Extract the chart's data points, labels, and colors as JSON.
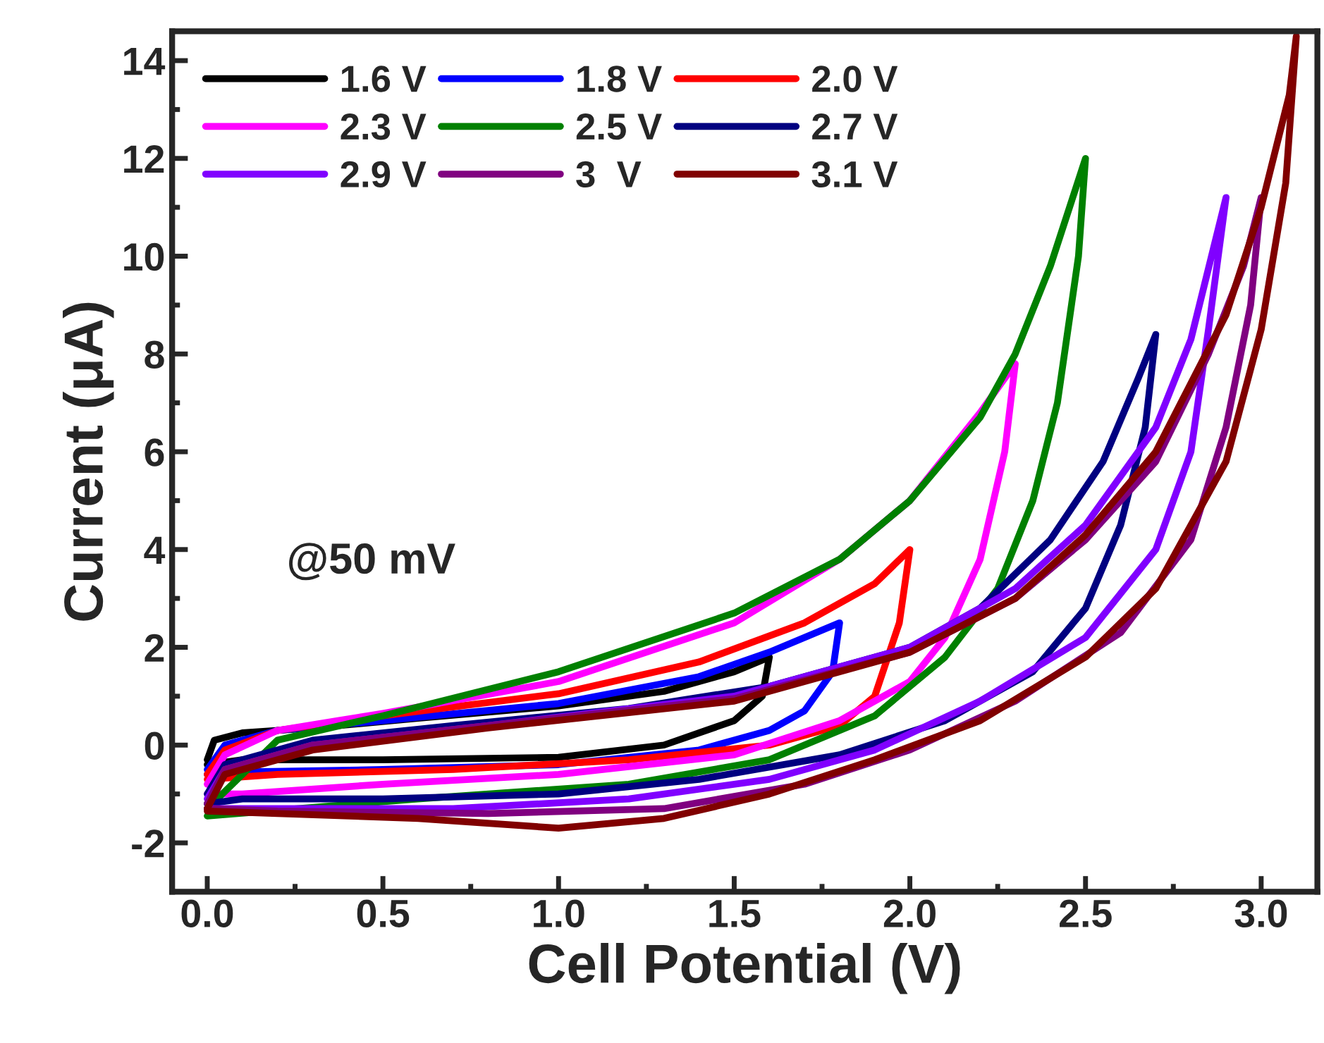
{
  "chart_data": {
    "type": "line",
    "xlabel": "Cell Potential (V)",
    "ylabel": "Current (μA)",
    "annotations": [
      "@50 mV"
    ],
    "xlim": [
      -0.1,
      3.16
    ],
    "ylim": [
      -3,
      14.6
    ],
    "xticks": [
      {
        "value": 0,
        "label": "0.0"
      },
      0.5,
      {
        "value": 1,
        "label": "1.0"
      },
      1.5,
      {
        "value": 2,
        "label": "2.0"
      },
      2.5,
      {
        "value": 3,
        "label": "3.0"
      }
    ],
    "yticks": [
      -2,
      0,
      2,
      4,
      6,
      8,
      10,
      12,
      14
    ],
    "legend": "top left",
    "grid": false,
    "marker": "none",
    "line_style": "solid",
    "series": [
      {
        "name": "1.6 V",
        "color": "#000000",
        "x": [
          0,
          0.02,
          0.1,
          0.3,
          0.6,
          1.0,
          1.3,
          1.5,
          1.6,
          1.58,
          1.5,
          1.3,
          1.0,
          0.5,
          0.1,
          0
        ],
        "values": [
          -0.3,
          0.1,
          0.25,
          0.35,
          0.55,
          0.8,
          1.1,
          1.5,
          1.8,
          1.0,
          0.5,
          0.0,
          -0.25,
          -0.3,
          -0.3,
          -0.4
        ]
      },
      {
        "name": "1.8 V",
        "color": "#0000ff",
        "x": [
          0,
          0.05,
          0.2,
          0.5,
          1.0,
          1.4,
          1.6,
          1.8,
          1.78,
          1.7,
          1.6,
          1.4,
          1.0,
          0.5,
          0.1,
          0
        ],
        "values": [
          -0.5,
          0.0,
          0.3,
          0.5,
          0.85,
          1.4,
          1.9,
          2.5,
          1.5,
          0.7,
          0.3,
          -0.1,
          -0.4,
          -0.5,
          -0.55,
          -0.6
        ]
      },
      {
        "name": "2.0 V",
        "color": "#ff0000",
        "x": [
          0,
          0.05,
          0.2,
          0.5,
          1.0,
          1.4,
          1.7,
          1.9,
          2.0,
          1.97,
          1.9,
          1.8,
          1.6,
          1.2,
          0.7,
          0.2,
          0
        ],
        "values": [
          -0.6,
          -0.1,
          0.3,
          0.6,
          1.05,
          1.7,
          2.5,
          3.3,
          4.0,
          2.5,
          1.0,
          0.4,
          0.0,
          -0.3,
          -0.5,
          -0.6,
          -0.7
        ]
      },
      {
        "name": "2.3 V",
        "color": "#ff00ff",
        "x": [
          0,
          0.05,
          0.2,
          0.5,
          1.0,
          1.5,
          1.8,
          2.0,
          2.2,
          2.3,
          2.27,
          2.2,
          2.1,
          2.0,
          1.8,
          1.5,
          1.0,
          0.5,
          0.1,
          0
        ],
        "values": [
          -0.8,
          -0.2,
          0.3,
          0.65,
          1.3,
          2.5,
          3.8,
          5.0,
          6.8,
          7.8,
          6.0,
          3.8,
          2.2,
          1.3,
          0.5,
          -0.2,
          -0.6,
          -0.8,
          -1.0,
          -1.0
        ]
      },
      {
        "name": "2.5 V",
        "color": "#008000",
        "x": [
          0,
          0.2,
          0.5,
          1.0,
          1.5,
          1.8,
          2.0,
          2.2,
          2.3,
          2.4,
          2.5,
          2.48,
          2.42,
          2.35,
          2.25,
          2.1,
          1.9,
          1.6,
          1.2,
          0.6,
          0
        ],
        "values": [
          -1.3,
          0.1,
          0.6,
          1.5,
          2.7,
          3.8,
          5.0,
          6.7,
          8.0,
          9.8,
          12.0,
          10.0,
          7.0,
          5.0,
          3.2,
          1.8,
          0.6,
          -0.3,
          -0.8,
          -1.1,
          -1.45
        ]
      },
      {
        "name": "2.7 V",
        "color": "#000080",
        "x": [
          0,
          0.05,
          0.3,
          0.7,
          1.2,
          1.6,
          2.0,
          2.2,
          2.4,
          2.55,
          2.65,
          2.7,
          2.67,
          2.6,
          2.5,
          2.35,
          2.1,
          1.8,
          1.4,
          1.0,
          0.5,
          0.1,
          0
        ],
        "values": [
          -1.0,
          -0.4,
          0.1,
          0.4,
          0.75,
          1.2,
          2.0,
          2.8,
          4.2,
          5.8,
          7.5,
          8.4,
          6.5,
          4.5,
          2.8,
          1.5,
          0.5,
          -0.2,
          -0.7,
          -1.0,
          -1.1,
          -1.1,
          -1.2
        ]
      },
      {
        "name": "2.9 V",
        "color": "#8000ff",
        "x": [
          0,
          0.05,
          0.3,
          0.8,
          1.5,
          2.0,
          2.3,
          2.5,
          2.7,
          2.8,
          2.9,
          2.85,
          2.8,
          2.7,
          2.5,
          2.2,
          1.9,
          1.6,
          1.2,
          0.7,
          0.2,
          0
        ],
        "values": [
          -1.1,
          -0.5,
          0.0,
          0.4,
          1.0,
          2.0,
          3.2,
          4.5,
          6.5,
          8.3,
          11.2,
          8.5,
          6.0,
          4.0,
          2.2,
          0.9,
          -0.1,
          -0.7,
          -1.1,
          -1.3,
          -1.3,
          -1.3
        ]
      },
      {
        "name": "3  V",
        "color": "#800080",
        "x": [
          0,
          0.05,
          0.3,
          0.8,
          1.5,
          2.0,
          2.3,
          2.5,
          2.7,
          2.85,
          2.95,
          3.0,
          2.97,
          2.9,
          2.8,
          2.6,
          2.3,
          2.0,
          1.7,
          1.3,
          0.8,
          0.2,
          0
        ],
        "values": [
          -1.2,
          -0.5,
          0.0,
          0.4,
          0.95,
          1.9,
          3.0,
          4.2,
          5.8,
          8.0,
          9.8,
          11.2,
          9.0,
          6.5,
          4.2,
          2.3,
          0.9,
          -0.1,
          -0.8,
          -1.3,
          -1.4,
          -1.35,
          -1.3
        ]
      },
      {
        "name": "3.1 V",
        "color": "#800000",
        "x": [
          0,
          0.05,
          0.3,
          0.8,
          1.5,
          2.0,
          2.3,
          2.5,
          2.7,
          2.9,
          3.0,
          3.08,
          3.1,
          3.07,
          3.0,
          2.9,
          2.7,
          2.5,
          2.2,
          1.9,
          1.6,
          1.3,
          1.0,
          0.6,
          0.2,
          0
        ],
        "values": [
          -1.3,
          -0.6,
          -0.1,
          0.35,
          0.9,
          1.9,
          3.0,
          4.3,
          6.0,
          8.8,
          11.0,
          13.3,
          14.5,
          11.5,
          8.5,
          5.8,
          3.2,
          1.8,
          0.5,
          -0.3,
          -1.0,
          -1.5,
          -1.7,
          -1.5,
          -1.4,
          -1.35
        ]
      }
    ]
  }
}
